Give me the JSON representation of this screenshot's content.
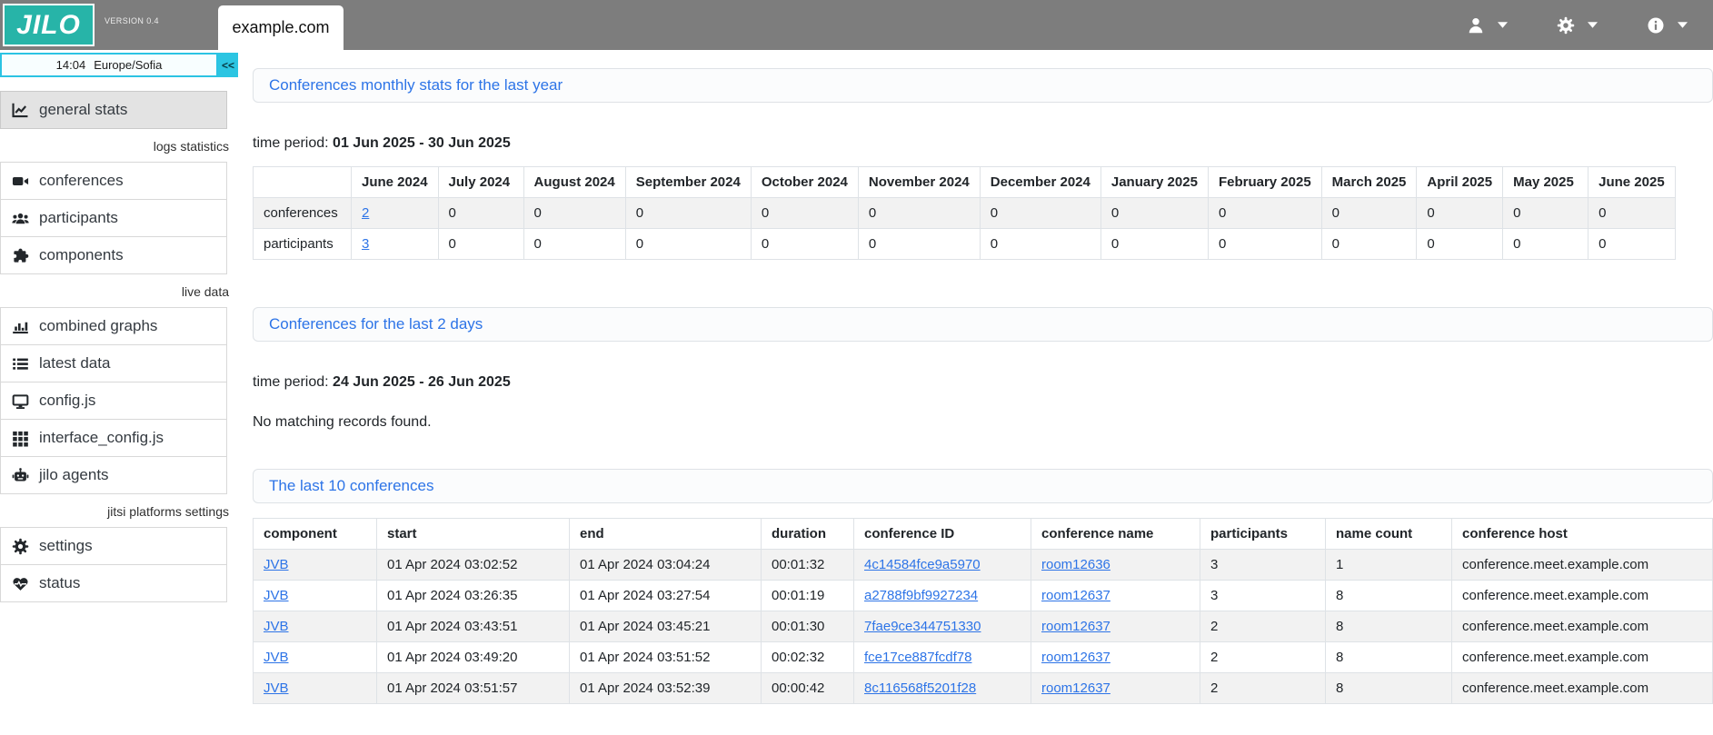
{
  "colors": {
    "header_bg": "#7d7d7d",
    "logo_teal": "#27b4a8",
    "cyan_accent": "#2cc5e2",
    "link_blue": "#2d74e7",
    "table_border": "#dee2e6",
    "stripe_bg": "#f2f2f2",
    "active_item_bg": "#e3e3e3"
  },
  "header": {
    "logo_text": "JILO",
    "version": "VERSION 0.4",
    "tab_label": "example.com",
    "menus": [
      {
        "name": "user-menu",
        "icon": "user-icon"
      },
      {
        "name": "settings-menu",
        "icon": "gear-icon"
      },
      {
        "name": "info-menu",
        "icon": "info-icon"
      }
    ]
  },
  "sidebar": {
    "clock_time": "14:04",
    "clock_timezone": "Europe/Sofia",
    "collapse_label": "<<",
    "sections": [
      {
        "label": "",
        "items": [
          {
            "icon": "chart-line-icon",
            "label": "general stats",
            "active": true
          }
        ]
      },
      {
        "label": "logs statistics",
        "items": [
          {
            "icon": "video-icon",
            "label": "conferences"
          },
          {
            "icon": "users-icon",
            "label": "participants"
          },
          {
            "icon": "puzzle-icon",
            "label": "components"
          }
        ]
      },
      {
        "label": "live data",
        "items": [
          {
            "icon": "bar-chart-icon",
            "label": "combined graphs"
          },
          {
            "icon": "list-icon",
            "label": "latest data"
          },
          {
            "icon": "desktop-icon",
            "label": "config.js"
          },
          {
            "icon": "grid-icon",
            "label": "interface_config.js"
          },
          {
            "icon": "robot-icon",
            "label": "jilo agents"
          }
        ]
      },
      {
        "label": "jitsi platforms settings",
        "items": [
          {
            "icon": "gear-icon",
            "label": "settings"
          },
          {
            "icon": "heart-pulse-icon",
            "label": "status"
          }
        ]
      }
    ]
  },
  "main": {
    "monthly": {
      "title": "Conferences monthly stats for the last year",
      "time_period_label": "time period:",
      "time_period": "01 Jun 2025 - 30 Jun 2025",
      "columns": [
        "",
        "June 2024",
        "July 2024",
        "August 2024",
        "September 2024",
        "October 2024",
        "November 2024",
        "December 2024",
        "January 2025",
        "February 2025",
        "March 2025",
        "April 2025",
        "May 2025",
        "June 2025"
      ],
      "rows": [
        {
          "label": "conferences",
          "values": [
            "2",
            "0",
            "0",
            "0",
            "0",
            "0",
            "0",
            "0",
            "0",
            "0",
            "0",
            "0",
            "0"
          ],
          "link_value_indices": [
            0
          ]
        },
        {
          "label": "participants",
          "values": [
            "3",
            "0",
            "0",
            "0",
            "0",
            "0",
            "0",
            "0",
            "0",
            "0",
            "0",
            "0",
            "0"
          ],
          "link_value_indices": [
            0
          ]
        }
      ]
    },
    "last2days": {
      "title": "Conferences for the last 2 days",
      "time_period_label": "time period:",
      "time_period": "24 Jun 2025 - 26 Jun 2025",
      "empty_message": "No matching records found."
    },
    "last10": {
      "title": "The last 10 conferences",
      "columns": [
        "component",
        "start",
        "end",
        "duration",
        "conference ID",
        "conference name",
        "participants",
        "name count",
        "conference host"
      ],
      "link_column_indices": [
        0,
        4,
        5
      ],
      "rows": [
        [
          "JVB",
          "01 Apr 2024 03:02:52",
          "01 Apr 2024 03:04:24",
          "00:01:32",
          "4c14584fce9a5970",
          "room12636",
          "3",
          "1",
          "conference.meet.example.com"
        ],
        [
          "JVB",
          "01 Apr 2024 03:26:35",
          "01 Apr 2024 03:27:54",
          "00:01:19",
          "a2788f9bf9927234",
          "room12637",
          "3",
          "8",
          "conference.meet.example.com"
        ],
        [
          "JVB",
          "01 Apr 2024 03:43:51",
          "01 Apr 2024 03:45:21",
          "00:01:30",
          "7fae9ce344751330",
          "room12637",
          "2",
          "8",
          "conference.meet.example.com"
        ],
        [
          "JVB",
          "01 Apr 2024 03:49:20",
          "01 Apr 2024 03:51:52",
          "00:02:32",
          "fce17ce887fcdf78",
          "room12637",
          "2",
          "8",
          "conference.meet.example.com"
        ],
        [
          "JVB",
          "01 Apr 2024 03:51:57",
          "01 Apr 2024 03:52:39",
          "00:00:42",
          "8c116568f5201f28",
          "room12637",
          "2",
          "8",
          "conference.meet.example.com"
        ]
      ]
    }
  }
}
